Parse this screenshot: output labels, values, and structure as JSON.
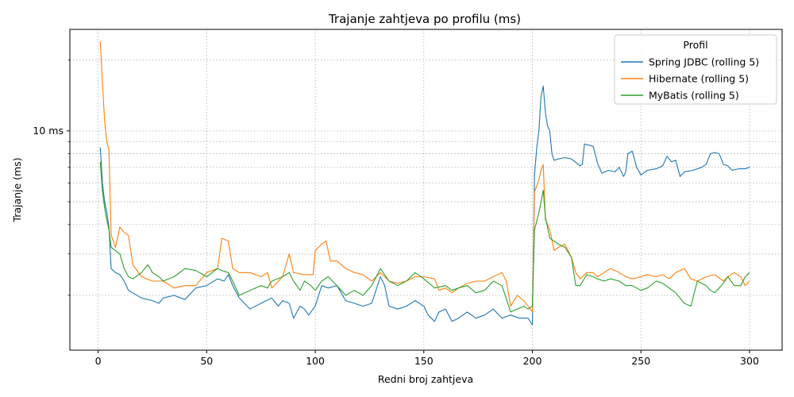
{
  "chart_data": {
    "type": "line",
    "title": "Trajanje zahtjeva po profilu (ms)",
    "xlabel": "Redni broj zahtjeva",
    "ylabel": "Trajanje (ms)",
    "xlim": [
      -13,
      315
    ],
    "ylim": [
      1.17,
      27.0
    ],
    "yscale": "log",
    "x_ticks": [
      0,
      50,
      100,
      150,
      200,
      250,
      300
    ],
    "x_tick_labels": [
      "0",
      "50",
      "100",
      "150",
      "200",
      "250",
      "300"
    ],
    "y_ticks": [
      10
    ],
    "y_tick_labels": [
      "10 ms"
    ],
    "y_minor_ticks": [
      2,
      3,
      4,
      5,
      6,
      7,
      8,
      9,
      20
    ],
    "grid": true,
    "legend": {
      "title": "Profil",
      "placement": "top-right"
    },
    "series": [
      {
        "name": "Spring JDBC (rolling 5)",
        "color": "#1f77b4",
        "points": [
          [
            1,
            8.5
          ],
          [
            2,
            6
          ],
          [
            3,
            5
          ],
          [
            4,
            4.5
          ],
          [
            5,
            3.9
          ],
          [
            6,
            2.6
          ],
          [
            8,
            2.5
          ],
          [
            10,
            2.45
          ],
          [
            12,
            2.3
          ],
          [
            14,
            2.1
          ],
          [
            16,
            2.05
          ],
          [
            20,
            1.95
          ],
          [
            25,
            1.9
          ],
          [
            28,
            1.85
          ],
          [
            30,
            1.95
          ],
          [
            35,
            2.0
          ],
          [
            40,
            1.92
          ],
          [
            45,
            2.15
          ],
          [
            50,
            2.2
          ],
          [
            55,
            2.35
          ],
          [
            58,
            2.3
          ],
          [
            60,
            2.45
          ],
          [
            62,
            2.2
          ],
          [
            65,
            1.95
          ],
          [
            70,
            1.75
          ],
          [
            75,
            1.85
          ],
          [
            80,
            1.95
          ],
          [
            83,
            1.8
          ],
          [
            85,
            1.9
          ],
          [
            88,
            1.85
          ],
          [
            90,
            1.6
          ],
          [
            93,
            1.8
          ],
          [
            95,
            1.75
          ],
          [
            97,
            1.65
          ],
          [
            100,
            1.8
          ],
          [
            103,
            2.2
          ],
          [
            106,
            2.15
          ],
          [
            110,
            2.2
          ],
          [
            114,
            1.9
          ],
          [
            118,
            1.85
          ],
          [
            122,
            1.8
          ],
          [
            126,
            1.85
          ],
          [
            130,
            2.4
          ],
          [
            132,
            2.2
          ],
          [
            134,
            1.8
          ],
          [
            138,
            1.75
          ],
          [
            142,
            1.8
          ],
          [
            146,
            1.9
          ],
          [
            150,
            1.8
          ],
          [
            152,
            1.65
          ],
          [
            155,
            1.55
          ],
          [
            157,
            1.7
          ],
          [
            160,
            1.75
          ],
          [
            163,
            1.55
          ],
          [
            166,
            1.6
          ],
          [
            170,
            1.7
          ],
          [
            174,
            1.6
          ],
          [
            178,
            1.65
          ],
          [
            182,
            1.75
          ],
          [
            186,
            1.6
          ],
          [
            190,
            1.65
          ],
          [
            194,
            1.6
          ],
          [
            198,
            1.6
          ],
          [
            200,
            1.5
          ],
          [
            201,
            6.5
          ],
          [
            202,
            8.5
          ],
          [
            203,
            10
          ],
          [
            204,
            14
          ],
          [
            205,
            15.5
          ],
          [
            206,
            12
          ],
          [
            207,
            10.5
          ],
          [
            208,
            10
          ],
          [
            209,
            8
          ],
          [
            210,
            7.5
          ],
          [
            212,
            7.6
          ],
          [
            215,
            7.7
          ],
          [
            218,
            7.6
          ],
          [
            222,
            7.1
          ],
          [
            223,
            7.2
          ],
          [
            224,
            8.8
          ],
          [
            226,
            8.7
          ],
          [
            228,
            8.6
          ],
          [
            230,
            7.3
          ],
          [
            232,
            6.6
          ],
          [
            235,
            6.8
          ],
          [
            238,
            6.7
          ],
          [
            240,
            7.0
          ],
          [
            242,
            6.4
          ],
          [
            243,
            6.7
          ],
          [
            244,
            8.0
          ],
          [
            246,
            8.2
          ],
          [
            248,
            7.0
          ],
          [
            250,
            6.5
          ],
          [
            253,
            6.8
          ],
          [
            257,
            6.9
          ],
          [
            260,
            7.1
          ],
          [
            262,
            7.8
          ],
          [
            264,
            7.4
          ],
          [
            266,
            7.5
          ],
          [
            268,
            6.4
          ],
          [
            270,
            6.7
          ],
          [
            274,
            6.8
          ],
          [
            278,
            7.0
          ],
          [
            280,
            7.2
          ],
          [
            282,
            8.0
          ],
          [
            284,
            8.1
          ],
          [
            286,
            8.0
          ],
          [
            288,
            7.2
          ],
          [
            290,
            7.1
          ],
          [
            292,
            6.8
          ],
          [
            295,
            6.9
          ],
          [
            298,
            6.9
          ],
          [
            300,
            7.0
          ]
        ]
      },
      {
        "name": "Hibernate (rolling 5)",
        "color": "#ff7f0e",
        "points": [
          [
            1,
            24
          ],
          [
            2,
            16
          ],
          [
            3,
            11
          ],
          [
            4,
            9
          ],
          [
            5,
            8.3
          ],
          [
            6,
            3.6
          ],
          [
            8,
            3.2
          ],
          [
            10,
            3.9
          ],
          [
            12,
            3.7
          ],
          [
            14,
            3.6
          ],
          [
            16,
            2.7
          ],
          [
            20,
            2.4
          ],
          [
            25,
            2.3
          ],
          [
            30,
            2.3
          ],
          [
            35,
            2.15
          ],
          [
            40,
            2.2
          ],
          [
            45,
            2.2
          ],
          [
            50,
            2.5
          ],
          [
            55,
            2.6
          ],
          [
            57,
            3.5
          ],
          [
            60,
            3.4
          ],
          [
            62,
            2.6
          ],
          [
            65,
            2.5
          ],
          [
            70,
            2.5
          ],
          [
            75,
            2.4
          ],
          [
            78,
            2.5
          ],
          [
            80,
            2.15
          ],
          [
            85,
            2.4
          ],
          [
            88,
            3.0
          ],
          [
            90,
            2.5
          ],
          [
            95,
            2.45
          ],
          [
            99,
            2.45
          ],
          [
            100,
            3.1
          ],
          [
            103,
            3.3
          ],
          [
            105,
            3.4
          ],
          [
            107,
            2.8
          ],
          [
            110,
            2.8
          ],
          [
            114,
            2.6
          ],
          [
            118,
            2.5
          ],
          [
            122,
            2.45
          ],
          [
            126,
            2.3
          ],
          [
            130,
            2.5
          ],
          [
            134,
            2.3
          ],
          [
            138,
            2.25
          ],
          [
            142,
            2.3
          ],
          [
            146,
            2.4
          ],
          [
            150,
            2.4
          ],
          [
            155,
            2.35
          ],
          [
            157,
            2.1
          ],
          [
            160,
            2.15
          ],
          [
            163,
            2.05
          ],
          [
            166,
            2.15
          ],
          [
            170,
            2.25
          ],
          [
            174,
            2.3
          ],
          [
            178,
            2.3
          ],
          [
            182,
            2.4
          ],
          [
            186,
            2.5
          ],
          [
            188,
            2.3
          ],
          [
            190,
            1.8
          ],
          [
            193,
            2.0
          ],
          [
            196,
            1.9
          ],
          [
            198,
            1.8
          ],
          [
            200,
            1.7
          ],
          [
            201,
            5.5
          ],
          [
            203,
            6.2
          ],
          [
            204,
            6.8
          ],
          [
            205,
            7.2
          ],
          [
            206,
            4.2
          ],
          [
            208,
            3.8
          ],
          [
            210,
            3.1
          ],
          [
            212,
            3.2
          ],
          [
            215,
            3.3
          ],
          [
            218,
            2.9
          ],
          [
            220,
            2.5
          ],
          [
            222,
            2.35
          ],
          [
            225,
            2.5
          ],
          [
            228,
            2.5
          ],
          [
            230,
            2.4
          ],
          [
            233,
            2.5
          ],
          [
            236,
            2.6
          ],
          [
            240,
            2.5
          ],
          [
            243,
            2.4
          ],
          [
            246,
            2.35
          ],
          [
            250,
            2.4
          ],
          [
            253,
            2.45
          ],
          [
            257,
            2.4
          ],
          [
            260,
            2.45
          ],
          [
            263,
            2.35
          ],
          [
            266,
            2.5
          ],
          [
            270,
            2.6
          ],
          [
            273,
            2.35
          ],
          [
            276,
            2.3
          ],
          [
            280,
            2.4
          ],
          [
            284,
            2.45
          ],
          [
            288,
            2.3
          ],
          [
            290,
            2.4
          ],
          [
            293,
            2.5
          ],
          [
            296,
            2.4
          ],
          [
            298,
            2.2
          ],
          [
            300,
            2.3
          ]
        ]
      },
      {
        "name": "MyBatis (rolling 5)",
        "color": "#2ca02c",
        "points": [
          [
            1,
            7.4
          ],
          [
            2,
            5.5
          ],
          [
            3,
            4.7
          ],
          [
            4,
            4.2
          ],
          [
            5,
            3.8
          ],
          [
            6,
            3.2
          ],
          [
            8,
            3.1
          ],
          [
            10,
            3.0
          ],
          [
            12,
            2.6
          ],
          [
            14,
            2.4
          ],
          [
            16,
            2.35
          ],
          [
            20,
            2.5
          ],
          [
            23,
            2.7
          ],
          [
            25,
            2.5
          ],
          [
            28,
            2.4
          ],
          [
            30,
            2.3
          ],
          [
            35,
            2.4
          ],
          [
            40,
            2.6
          ],
          [
            45,
            2.55
          ],
          [
            50,
            2.4
          ],
          [
            55,
            2.6
          ],
          [
            57,
            2.55
          ],
          [
            60,
            2.5
          ],
          [
            62,
            2.3
          ],
          [
            65,
            2.0
          ],
          [
            70,
            2.1
          ],
          [
            75,
            2.2
          ],
          [
            78,
            2.15
          ],
          [
            80,
            2.3
          ],
          [
            85,
            2.4
          ],
          [
            88,
            2.5
          ],
          [
            90,
            2.3
          ],
          [
            93,
            2.1
          ],
          [
            95,
            2.3
          ],
          [
            98,
            2.2
          ],
          [
            100,
            2.1
          ],
          [
            103,
            2.3
          ],
          [
            106,
            2.4
          ],
          [
            110,
            2.2
          ],
          [
            114,
            2.0
          ],
          [
            118,
            2.1
          ],
          [
            122,
            2.0
          ],
          [
            126,
            2.2
          ],
          [
            130,
            2.6
          ],
          [
            134,
            2.3
          ],
          [
            138,
            2.2
          ],
          [
            142,
            2.3
          ],
          [
            146,
            2.5
          ],
          [
            150,
            2.35
          ],
          [
            155,
            2.15
          ],
          [
            160,
            2.2
          ],
          [
            163,
            2.1
          ],
          [
            166,
            2.15
          ],
          [
            170,
            2.2
          ],
          [
            174,
            2.05
          ],
          [
            178,
            2.1
          ],
          [
            182,
            2.3
          ],
          [
            186,
            2.2
          ],
          [
            190,
            1.7
          ],
          [
            193,
            1.75
          ],
          [
            196,
            1.8
          ],
          [
            198,
            1.75
          ],
          [
            200,
            1.8
          ],
          [
            201,
            3.8
          ],
          [
            203,
            4.5
          ],
          [
            204,
            5.0
          ],
          [
            205,
            5.6
          ],
          [
            206,
            4.3
          ],
          [
            208,
            3.5
          ],
          [
            210,
            3.4
          ],
          [
            212,
            3.3
          ],
          [
            215,
            3.2
          ],
          [
            218,
            2.9
          ],
          [
            220,
            2.2
          ],
          [
            222,
            2.2
          ],
          [
            225,
            2.45
          ],
          [
            228,
            2.4
          ],
          [
            230,
            2.35
          ],
          [
            233,
            2.3
          ],
          [
            236,
            2.35
          ],
          [
            240,
            2.3
          ],
          [
            243,
            2.2
          ],
          [
            246,
            2.2
          ],
          [
            250,
            2.1
          ],
          [
            253,
            2.15
          ],
          [
            257,
            2.3
          ],
          [
            260,
            2.25
          ],
          [
            263,
            2.15
          ],
          [
            266,
            2.05
          ],
          [
            270,
            1.85
          ],
          [
            273,
            1.8
          ],
          [
            276,
            2.3
          ],
          [
            280,
            2.2
          ],
          [
            282,
            2.1
          ],
          [
            284,
            2.05
          ],
          [
            288,
            2.25
          ],
          [
            290,
            2.4
          ],
          [
            293,
            2.2
          ],
          [
            296,
            2.2
          ],
          [
            298,
            2.4
          ],
          [
            300,
            2.5
          ]
        ]
      }
    ]
  }
}
